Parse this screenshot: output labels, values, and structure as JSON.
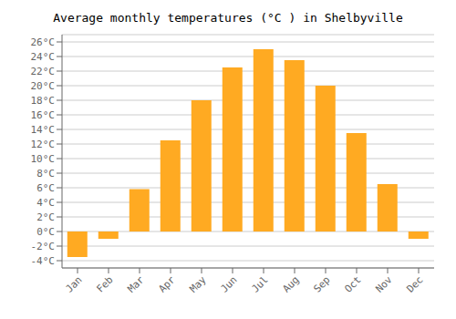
{
  "chart_data": {
    "type": "bar",
    "title": "Average monthly temperatures (°C ) in Shelbyville",
    "categories": [
      "Jan",
      "Feb",
      "Mar",
      "Apr",
      "May",
      "Jun",
      "Jul",
      "Aug",
      "Sep",
      "Oct",
      "Nov",
      "Dec"
    ],
    "values": [
      -3.5,
      -1.0,
      5.8,
      12.5,
      18.0,
      22.5,
      25.0,
      23.5,
      20.0,
      13.5,
      6.5,
      -1.0
    ],
    "color": "#FFAA22",
    "ylim": [
      -5,
      27
    ],
    "yticks": [
      {
        "value": -4,
        "label": "-4°C"
      },
      {
        "value": -2,
        "label": "-2°C"
      },
      {
        "value": 0,
        "label": "0°C"
      },
      {
        "value": 2,
        "label": "2°C"
      },
      {
        "value": 4,
        "label": "4°C"
      },
      {
        "value": 6,
        "label": "6°C"
      },
      {
        "value": 8,
        "label": "8°C"
      },
      {
        "value": 10,
        "label": "10°C"
      },
      {
        "value": 12,
        "label": "12°C"
      },
      {
        "value": 14,
        "label": "14°C"
      },
      {
        "value": 16,
        "label": "16°C"
      },
      {
        "value": 18,
        "label": "18°C"
      },
      {
        "value": 20,
        "label": "20°C"
      },
      {
        "value": 22,
        "label": "22°C"
      },
      {
        "value": 24,
        "label": "24°C"
      },
      {
        "value": 26,
        "label": "26°C"
      }
    ],
    "grid": true
  }
}
